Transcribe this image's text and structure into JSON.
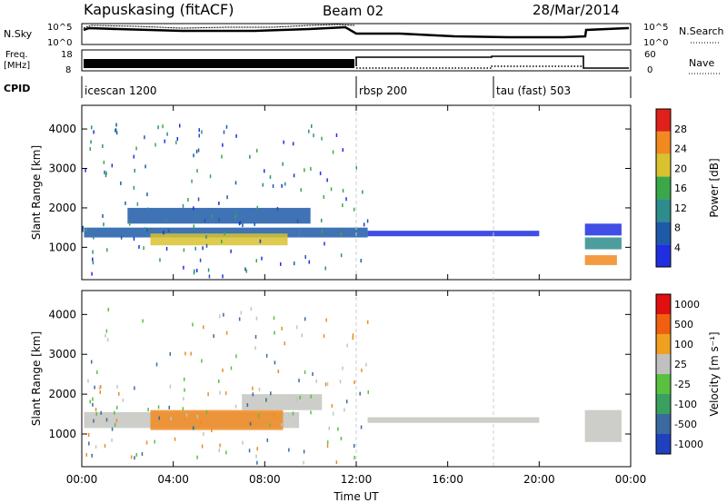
{
  "header": {
    "station": "Kapuskasing (fitACF)",
    "beam": "Beam 02",
    "date": "28/Mar/2014"
  },
  "top_panels": {
    "nsky_label": "N.Sky",
    "nsearch_label": "N.Search",
    "nsky_ticks": [
      "10^5",
      "10^0"
    ],
    "nsky_right_ticks": [
      "10^5",
      "10^0"
    ],
    "freq_label_1": "Freq.",
    "freq_label_2": "[MHz]",
    "freq_ticks": [
      "18",
      "8"
    ],
    "nave_label": "Nave",
    "nave_ticks": [
      "60",
      "0"
    ],
    "cpid_label": "CPID",
    "cpid_segments": [
      {
        "label": "icescan 1200",
        "start_hour": 0
      },
      {
        "label": "rbsp 200",
        "start_hour": 12
      },
      {
        "label": "tau (fast) 503",
        "start_hour": 18
      }
    ]
  },
  "chart_data": [
    {
      "type": "heatmap",
      "title": "Power",
      "ylabel": "Slant Range [km]",
      "xlabel": "",
      "xlim": [
        0,
        24
      ],
      "ylim": [
        180,
        4600
      ],
      "yticks": [
        "1000",
        "2000",
        "3000",
        "4000"
      ],
      "colorbar_label": "Power [dB]",
      "colorbar_ticks": [
        "4",
        "8",
        "12",
        "16",
        "20",
        "24",
        "28"
      ],
      "colorbar_colors": [
        "#1f2fe0",
        "#1e5aa8",
        "#2e8c8c",
        "#3aa84a",
        "#d8c230",
        "#f08a20",
        "#e0201a"
      ],
      "regions": [
        {
          "t": [
            0.1,
            9.5
          ],
          "r": [
            1250,
            1500
          ],
          "level": 8
        },
        {
          "t": [
            3.0,
            9.0
          ],
          "r": [
            1050,
            1350
          ],
          "level": 20
        },
        {
          "t": [
            9.5,
            12.5
          ],
          "r": [
            1250,
            1500
          ],
          "level": 10
        },
        {
          "t": [
            2.0,
            10.0
          ],
          "r": [
            1600,
            2000
          ],
          "level": 8
        },
        {
          "t": [
            12.5,
            20.0
          ],
          "r": [
            1280,
            1420
          ],
          "level": 4
        },
        {
          "t": [
            22.0,
            23.6
          ],
          "r": [
            1300,
            1600
          ],
          "level": 6
        },
        {
          "t": [
            22.0,
            23.6
          ],
          "r": [
            950,
            1250
          ],
          "level": 14
        },
        {
          "t": [
            22.0,
            23.4
          ],
          "r": [
            550,
            800
          ],
          "level": 26
        }
      ]
    },
    {
      "type": "heatmap",
      "title": "Velocity",
      "ylabel": "Slant Range [km]",
      "xlabel": "Time UT",
      "xlim": [
        0,
        24
      ],
      "ylim": [
        180,
        4600
      ],
      "xticks": [
        "00:00",
        "04:00",
        "08:00",
        "12:00",
        "16:00",
        "20:00",
        "00:00"
      ],
      "yticks": [
        "1000",
        "2000",
        "3000",
        "4000"
      ],
      "colorbar_label": "Velocity [m s⁻¹]",
      "colorbar_ticks": [
        "1000",
        "500",
        "100",
        "25",
        "-25",
        "-100",
        "-500",
        "-1000"
      ],
      "colorbar_colors": [
        "#2040c0",
        "#3a6aa0",
        "#3aa060",
        "#5ac040",
        "#c0c0c0",
        "#f0a020",
        "#f06010",
        "#e01010"
      ],
      "regions": [
        {
          "t": [
            0.1,
            9.5
          ],
          "r": [
            1150,
            1550
          ],
          "level": "gray"
        },
        {
          "t": [
            3.0,
            8.8
          ],
          "r": [
            1100,
            1600
          ],
          "level": "orange"
        },
        {
          "t": [
            7.0,
            10.5
          ],
          "r": [
            1600,
            2000
          ],
          "level": "gray"
        },
        {
          "t": [
            12.5,
            20.0
          ],
          "r": [
            1280,
            1420
          ],
          "level": "gray"
        },
        {
          "t": [
            22.0,
            23.6
          ],
          "r": [
            800,
            1600
          ],
          "level": "gray"
        }
      ]
    }
  ],
  "colors": {
    "axis": "#000000",
    "separator": "#cccccc"
  }
}
